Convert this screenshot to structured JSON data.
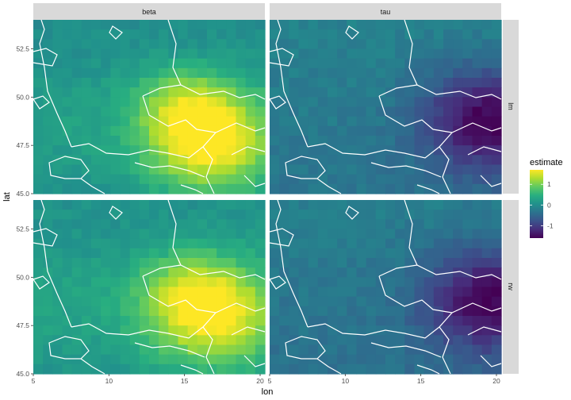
{
  "chart_data": {
    "type": "heatmap",
    "facet_cols": [
      "beta",
      "tau"
    ],
    "facet_rows": [
      "lm",
      "rw"
    ],
    "xlabel": "lon",
    "ylabel": "lat",
    "xlim": [
      5,
      20
    ],
    "ylim": [
      45,
      54
    ],
    "x_ticks": [
      5,
      10,
      15,
      20
    ],
    "y_ticks": [
      45.0,
      47.5,
      50.0,
      52.5
    ],
    "x_tick_labels": [
      "5",
      "10",
      "15",
      "20"
    ],
    "y_tick_labels": [
      "45.0",
      "47.5",
      "50.0",
      "52.5"
    ],
    "legend": {
      "title": "estimate",
      "placement": "right",
      "range": [
        -1.6,
        1.7
      ],
      "ticks": [
        -1,
        0,
        1
      ],
      "tick_labels": [
        "-1",
        "0",
        "1"
      ]
    },
    "colormap": "viridis",
    "grid": false,
    "panels": [
      {
        "col": "beta",
        "row": "lm",
        "hotspot": {
          "lon": 16.5,
          "lat": 47.7,
          "value": 1.7
        },
        "base": 0.0,
        "secondary_hotspot": {
          "lon": 14.8,
          "lat": 49.8,
          "value": 1.2
        }
      },
      {
        "col": "tau",
        "row": "lm",
        "hotspot": {
          "lon": 19.3,
          "lat": 48.8,
          "value": -1.6
        },
        "base": -0.25
      },
      {
        "col": "beta",
        "row": "rw",
        "hotspot": {
          "lon": 16.8,
          "lat": 48.0,
          "value": 1.55
        },
        "base": 0.05,
        "secondary_hotspot": {
          "lon": 15.0,
          "lat": 49.5,
          "value": 1.0
        }
      },
      {
        "col": "tau",
        "row": "rw",
        "hotspot": {
          "lon": 19.6,
          "lat": 48.8,
          "value": -1.6
        },
        "base": -0.3
      }
    ]
  },
  "colors": {
    "panel_bg": "#ebebeb",
    "strip_bg": "#d9d9d9",
    "border_lines": "#ffffff",
    "text": "#4d4d4d",
    "viridis": [
      "#440154",
      "#472d7b",
      "#3b528b",
      "#2c728e",
      "#21918c",
      "#28ae80",
      "#5ec962",
      "#addc30",
      "#fde725"
    ]
  }
}
